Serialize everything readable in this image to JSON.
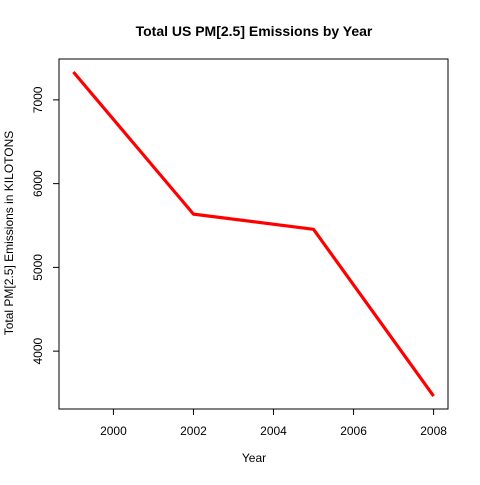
{
  "chart_data": {
    "type": "line",
    "title": "Total US PM[2.5] Emissions by Year",
    "xlabel": "Year",
    "ylabel": "Total PM[2.5] Emissions in KILOTONS",
    "x": [
      1999,
      2002,
      2005,
      2008
    ],
    "series": [
      {
        "values": [
          7332.967,
          5635.78,
          5454.703,
          3464.206
        ],
        "color": "#ff0000"
      }
    ],
    "xlim": [
      1998.64,
      2008.36
    ],
    "ylim": [
      3309.3,
      7487.9
    ],
    "xticks": [
      2000,
      2002,
      2004,
      2006,
      2008
    ],
    "yticks": [
      4000,
      5000,
      6000,
      7000
    ],
    "xtick_labels": [
      "2000",
      "2002",
      "2004",
      "2006",
      "2008"
    ],
    "ytick_labels": [
      "4000",
      "5000",
      "6000",
      "7000"
    ],
    "grid": false,
    "legend": "none"
  }
}
